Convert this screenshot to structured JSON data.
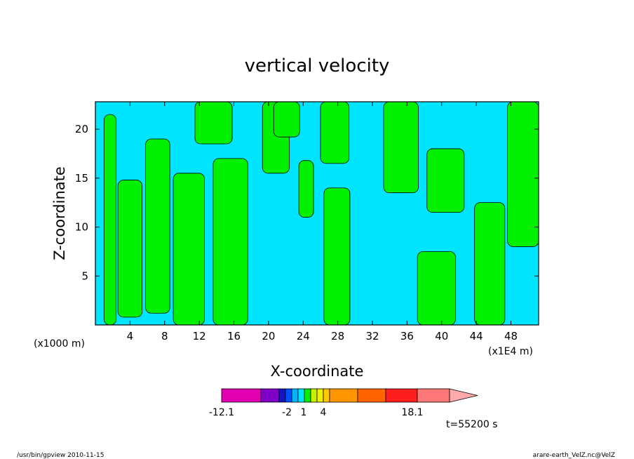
{
  "chart_data": {
    "type": "heatmap",
    "title": "vertical velocity",
    "xlabel": "X-coordinate",
    "ylabel": "Z-coordinate",
    "x_unit_left": "(x1000 m)",
    "x_unit_right": "(x1E4 m)",
    "xlim": [
      0,
      51.2
    ],
    "ylim": [
      0,
      22.8
    ],
    "x_ticks": [
      4,
      8,
      12,
      16,
      20,
      24,
      28,
      32,
      36,
      40,
      44,
      48
    ],
    "x_tick_labels": [
      "4",
      "8",
      "12",
      "16",
      "20",
      "24",
      "28",
      "32",
      "36",
      "40",
      "44",
      "48"
    ],
    "y_ticks": [
      5,
      10,
      15,
      20
    ],
    "y_tick_labels": [
      "5",
      "10",
      "15",
      "20"
    ],
    "background_level_color": "#00e5ff",
    "positive_level_color": "#00f000",
    "green_regions": [
      {
        "x0": 1.0,
        "x1": 2.4,
        "y0": 0,
        "y1": 21.5
      },
      {
        "x0": 2.6,
        "x1": 5.4,
        "y0": 0.8,
        "y1": 14.8
      },
      {
        "x0": 5.8,
        "x1": 8.6,
        "y0": 1.2,
        "y1": 19.0
      },
      {
        "x0": 9.0,
        "x1": 12.6,
        "y0": 0,
        "y1": 15.5
      },
      {
        "x0": 13.6,
        "x1": 17.6,
        "y0": 0,
        "y1": 17.0
      },
      {
        "x0": 11.5,
        "x1": 15.8,
        "y0": 18.5,
        "y1": 22.8
      },
      {
        "x0": 19.3,
        "x1": 22.4,
        "y0": 15.5,
        "y1": 22.8
      },
      {
        "x0": 20.6,
        "x1": 23.6,
        "y0": 19.2,
        "y1": 22.8
      },
      {
        "x0": 23.5,
        "x1": 25.2,
        "y0": 11.0,
        "y1": 16.8
      },
      {
        "x0": 26.0,
        "x1": 29.3,
        "y0": 16.5,
        "y1": 22.8
      },
      {
        "x0": 26.4,
        "x1": 29.4,
        "y0": 0,
        "y1": 14.0
      },
      {
        "x0": 33.3,
        "x1": 37.3,
        "y0": 13.5,
        "y1": 22.8
      },
      {
        "x0": 37.2,
        "x1": 41.6,
        "y0": 0,
        "y1": 7.5
      },
      {
        "x0": 38.3,
        "x1": 42.6,
        "y0": 11.5,
        "y1": 18.0
      },
      {
        "x0": 43.8,
        "x1": 47.3,
        "y0": 0,
        "y1": 12.5
      },
      {
        "x0": 47.6,
        "x1": 51.2,
        "y0": 8.0,
        "y1": 22.8
      }
    ],
    "colorbar": {
      "colors": [
        "#e000b0",
        "#8000c8",
        "#1414c8",
        "#0050ff",
        "#00b4ff",
        "#00e5ff",
        "#00f000",
        "#c8f000",
        "#f0f000",
        "#ffc800",
        "#ff9600",
        "#ff6400",
        "#ff1e1e",
        "#ff7878",
        "#ffaaaa"
      ],
      "tick_labels": [
        "-12.1",
        "-2",
        "1",
        "4",
        "18.1"
      ]
    },
    "time_label": "t=55200 s"
  },
  "footer": {
    "left": "/usr/bin/gpview   2010-11-15",
    "right": "arare-earth_VelZ.nc@VelZ"
  }
}
